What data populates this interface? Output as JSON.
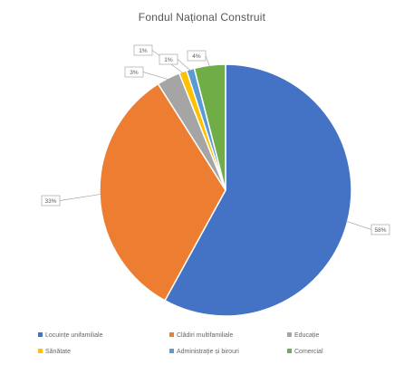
{
  "chart_data": {
    "type": "pie",
    "title": "Fondul Național Construit",
    "categories": [
      "Locuințe unifamiliale",
      "Clădiri multifamiliale",
      "Educație",
      "Sănătate",
      "Administrație și birouri",
      "Comercial"
    ],
    "values": [
      58,
      33,
      3,
      1,
      1,
      4
    ],
    "data_labels": [
      "58%",
      "33%",
      "3%",
      "1%",
      "1%",
      "4%"
    ],
    "colors": [
      "#4472C4",
      "#ED7D31",
      "#A5A5A5",
      "#FFC000",
      "#5B9BD5",
      "#70AD47"
    ],
    "legend_position": "bottom"
  }
}
